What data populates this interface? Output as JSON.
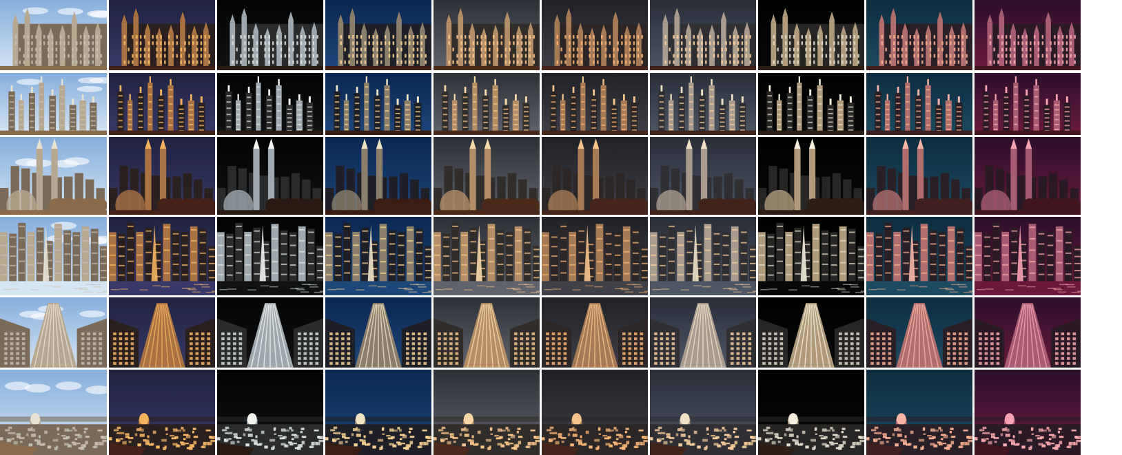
{
  "grid": {
    "columns": [
      "day-original",
      "night-blue",
      "night-black",
      "night-deep-blue",
      "night-gray",
      "night-dark-gray",
      "night-slate",
      "night-pure-black",
      "night-teal",
      "night-crimson"
    ],
    "rows": [
      {
        "scene": "gothic-palace"
      },
      {
        "scene": "glass-skyscrapers"
      },
      {
        "scene": "twin-towers-skyline"
      },
      {
        "scene": "waterfront-skyline"
      },
      {
        "scene": "art-deco-tower"
      },
      {
        "scene": "domed-city-panorama"
      }
    ]
  },
  "palettes": [
    {
      "top": "#86aedc",
      "bottom": "#d5e5f3",
      "fg": "#7b6a58",
      "lit": "#b7a891",
      "glow": "#e8e1d2",
      "win": "#c8c2b4",
      "ground": "#8a6c4c"
    },
    {
      "top": "#20223f",
      "bottom": "#393a68",
      "fg": "#2b2020",
      "lit": "#a87243",
      "glow": "#f4b25f",
      "win": "#ffbe69",
      "ground": "#442218"
    },
    {
      "top": "#030303",
      "bottom": "#101214",
      "fg": "#2a2b2c",
      "lit": "#9fa8ae",
      "glow": "#f1f3ef",
      "win": "#dfe5e3",
      "ground": "#2a1b12"
    },
    {
      "top": "#0b2651",
      "bottom": "#1e477a",
      "fg": "#1f1f27",
      "lit": "#8b7f6c",
      "glow": "#efe2c5",
      "win": "#ffd796",
      "ground": "#3a1d13"
    },
    {
      "top": "#2d3037",
      "bottom": "#61646c",
      "fg": "#312d2b",
      "lit": "#b38e66",
      "glow": "#f8d8a8",
      "win": "#ffc98d",
      "ground": "#4b2a1b"
    },
    {
      "top": "#202127",
      "bottom": "#404148",
      "fg": "#2c2726",
      "lit": "#a67a55",
      "glow": "#f6c38b",
      "win": "#ffb978",
      "ground": "#46261a"
    },
    {
      "top": "#292e38",
      "bottom": "#4e5665",
      "fg": "#2f2f34",
      "lit": "#a99b8d",
      "glow": "#f0e1c6",
      "win": "#ffd3a0",
      "ground": "#412419"
    },
    {
      "top": "#000000",
      "bottom": "#08090a",
      "fg": "#272624",
      "lit": "#b09a7c",
      "glow": "#f5eedd",
      "win": "#e6dfd0",
      "ground": "#2d1e15"
    },
    {
      "top": "#0e2c3f",
      "bottom": "#1d4b62",
      "fg": "#291f26",
      "lit": "#b06e6d",
      "glow": "#f6b5a7",
      "win": "#ffb494",
      "ground": "#40201e"
    },
    {
      "top": "#2a0f2b",
      "bottom": "#6c1a3c",
      "fg": "#2a1a25",
      "lit": "#a75c73",
      "glow": "#f7a2b3",
      "win": "#ffaeb2",
      "ground": "#40151e"
    }
  ]
}
